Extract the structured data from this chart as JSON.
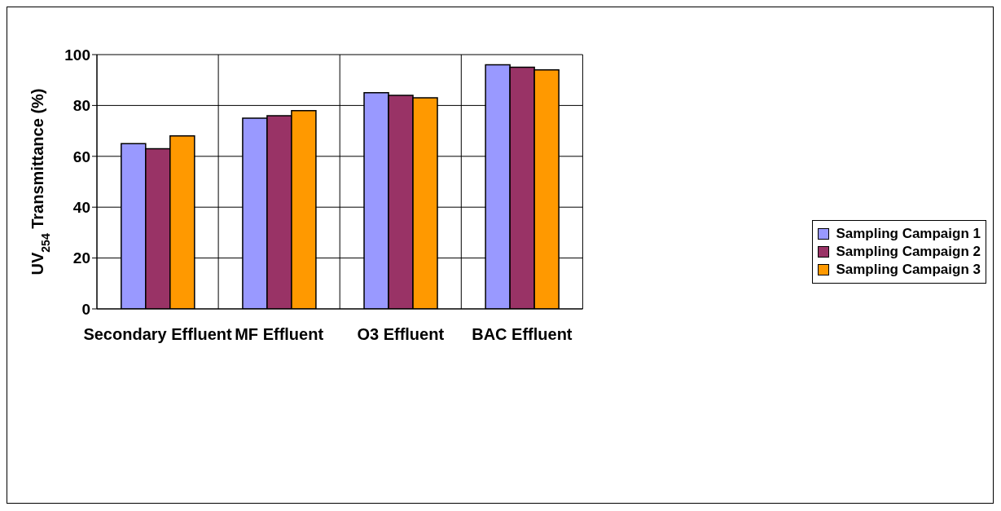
{
  "chart_data": {
    "type": "bar",
    "ylabel": "UV$_{254}$ Transmittance (%)",
    "categories": [
      "Secondary Effluent",
      "MF Effluent",
      "O3 Effluent",
      "BAC Effluent"
    ],
    "series": [
      {
        "name": "Sampling Campaign 1",
        "color": "#9999ff",
        "values": [
          65,
          75,
          85,
          96
        ]
      },
      {
        "name": "Sampling Campaign 2",
        "color": "#993366",
        "values": [
          63,
          76,
          84,
          95
        ]
      },
      {
        "name": "Sampling Campaign 3",
        "color": "#ff9900",
        "values": [
          68,
          78,
          83,
          94
        ]
      }
    ],
    "ylim": [
      0,
      100
    ],
    "yticks": [
      0,
      20,
      40,
      60,
      80,
      100
    ],
    "grid": true,
    "legend": "right"
  }
}
